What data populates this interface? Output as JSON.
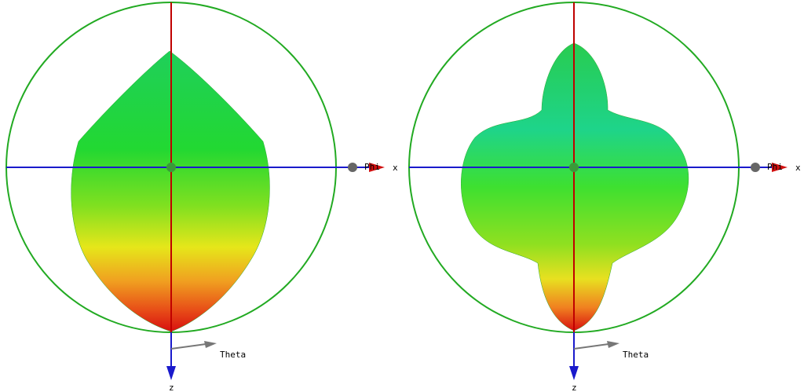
{
  "panels": [
    {
      "phi_label": "Phi",
      "x_label": "x",
      "theta_label": "Theta",
      "z_label": "z"
    },
    {
      "phi_label": "Phi",
      "x_label": "x",
      "theta_label": "Theta",
      "z_label": "z"
    }
  ]
}
